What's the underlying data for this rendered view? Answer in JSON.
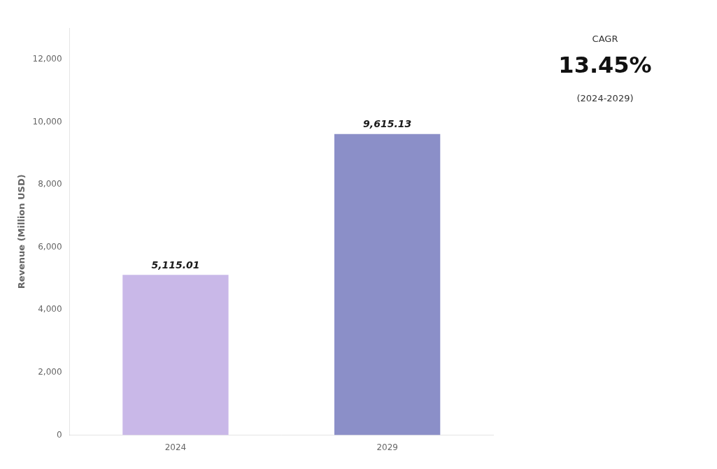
{
  "chart_data": {
    "type": "bar",
    "categories": [
      "2024",
      "2029"
    ],
    "values": [
      5115.01,
      9615.13
    ],
    "value_labels": [
      "5,115.01",
      "9,615.13"
    ],
    "data_labels": true,
    "colors": [
      "#C9B8E8",
      "#8B8FC8"
    ],
    "ylabel": "Revenue (Million USD)",
    "ylim": [
      0,
      13000
    ],
    "yticks": [
      0,
      {
        "value": 2000,
        "label": "2,000"
      },
      {
        "value": 4000,
        "label": "4,000"
      },
      {
        "value": 6000,
        "label": "6,000"
      },
      {
        "value": 8000,
        "label": "8,000"
      },
      {
        "value": 10000,
        "label": "10,000"
      },
      {
        "value": 12000,
        "label": "12,000"
      }
    ],
    "grid": false,
    "annotations": [
      "CAGR",
      "13.45%",
      "(2024-2029)"
    ]
  }
}
